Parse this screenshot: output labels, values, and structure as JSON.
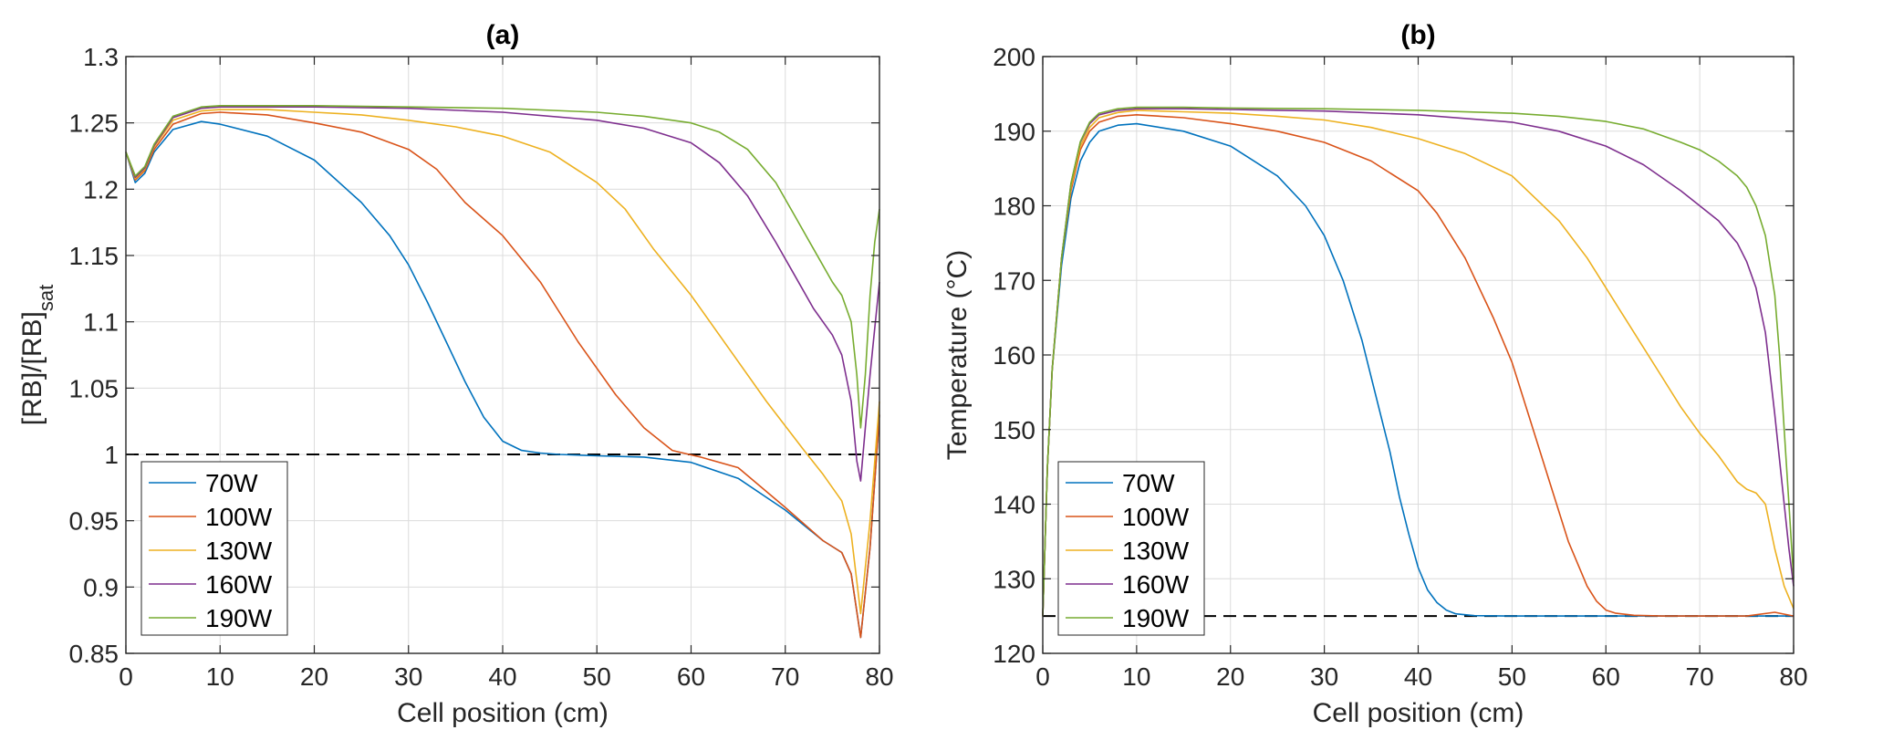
{
  "chart_data": [
    {
      "type": "line",
      "title": "(a)",
      "xlabel": "Cell position (cm)",
      "ylabel_main": "[RB]/[RB]",
      "ylabel_sub": "sat",
      "xlim": [
        0,
        80
      ],
      "ylim": [
        0.85,
        1.3
      ],
      "xticks": [
        0,
        10,
        20,
        30,
        40,
        50,
        60,
        70,
        80
      ],
      "xtick_labels": [
        "0",
        "10",
        "20",
        "30",
        "40",
        "50",
        "60",
        "70",
        "80"
      ],
      "yticks": [
        0.85,
        0.9,
        0.95,
        1,
        1.05,
        1.1,
        1.15,
        1.2,
        1.25,
        1.3
      ],
      "ytick_labels": [
        "0.85",
        "0.9",
        "0.95",
        "1",
        "1.05",
        "1.1",
        "1.15",
        "1.2",
        "1.25",
        "1.3"
      ],
      "grid": true,
      "legend_position": "bottom-left",
      "reference_line": {
        "y": 1.0,
        "style": "dashed",
        "color": "#000000"
      },
      "series": [
        {
          "name": "70W",
          "color": "#0072BD",
          "x": [
            0,
            1,
            2,
            3,
            5,
            8,
            10,
            15,
            20,
            25,
            28,
            30,
            32,
            34,
            36,
            38,
            40,
            42,
            44,
            46,
            50,
            55,
            60,
            65,
            70,
            74,
            76,
            77,
            78,
            79,
            80
          ],
          "y": [
            1.228,
            1.205,
            1.212,
            1.228,
            1.245,
            1.251,
            1.249,
            1.24,
            1.222,
            1.19,
            1.165,
            1.143,
            1.115,
            1.085,
            1.055,
            1.028,
            1.01,
            1.003,
            1.001,
            1.0,
            0.999,
            0.998,
            0.994,
            0.982,
            0.958,
            0.935,
            0.926,
            0.91,
            0.862,
            0.93,
            1.03
          ]
        },
        {
          "name": "100W",
          "color": "#D95319",
          "x": [
            0,
            1,
            2,
            3,
            5,
            8,
            10,
            15,
            20,
            25,
            30,
            33,
            36,
            40,
            44,
            48,
            52,
            55,
            58,
            61,
            65,
            70,
            74,
            76,
            77,
            78,
            79,
            80
          ],
          "y": [
            1.228,
            1.207,
            1.214,
            1.23,
            1.249,
            1.257,
            1.258,
            1.256,
            1.25,
            1.243,
            1.23,
            1.215,
            1.19,
            1.165,
            1.13,
            1.085,
            1.045,
            1.02,
            1.003,
            0.998,
            0.99,
            0.96,
            0.935,
            0.926,
            0.91,
            0.862,
            0.93,
            1.03
          ]
        },
        {
          "name": "130W",
          "color": "#EDB120",
          "x": [
            0,
            1,
            2,
            3,
            5,
            8,
            10,
            15,
            20,
            25,
            30,
            35,
            40,
            45,
            50,
            53,
            56,
            60,
            64,
            68,
            72,
            74,
            76,
            77,
            78,
            79,
            80
          ],
          "y": [
            1.228,
            1.208,
            1.215,
            1.232,
            1.252,
            1.259,
            1.26,
            1.26,
            1.258,
            1.256,
            1.252,
            1.247,
            1.24,
            1.228,
            1.205,
            1.185,
            1.155,
            1.12,
            1.08,
            1.04,
            1.003,
            0.985,
            0.965,
            0.94,
            0.88,
            0.95,
            1.04
          ]
        },
        {
          "name": "160W",
          "color": "#7E2F8E",
          "x": [
            0,
            1,
            2,
            3,
            5,
            8,
            10,
            15,
            20,
            30,
            40,
            50,
            55,
            60,
            63,
            66,
            69,
            71,
            73,
            75,
            76,
            77,
            77.6,
            78,
            78.5,
            79,
            79.5,
            80
          ],
          "y": [
            1.228,
            1.209,
            1.216,
            1.233,
            1.254,
            1.261,
            1.262,
            1.262,
            1.262,
            1.261,
            1.258,
            1.252,
            1.246,
            1.235,
            1.22,
            1.195,
            1.16,
            1.135,
            1.11,
            1.09,
            1.075,
            1.04,
            0.995,
            0.98,
            1.02,
            1.06,
            1.095,
            1.13
          ]
        },
        {
          "name": "190W",
          "color": "#77AC30",
          "x": [
            0,
            1,
            2,
            3,
            5,
            8,
            10,
            15,
            20,
            30,
            40,
            50,
            55,
            60,
            63,
            66,
            69,
            71,
            73,
            75,
            76,
            77,
            77.6,
            78,
            78.5,
            79,
            79.5,
            80
          ],
          "y": [
            1.228,
            1.21,
            1.217,
            1.234,
            1.255,
            1.262,
            1.263,
            1.263,
            1.263,
            1.262,
            1.261,
            1.258,
            1.255,
            1.25,
            1.243,
            1.23,
            1.205,
            1.18,
            1.155,
            1.13,
            1.12,
            1.1,
            1.06,
            1.02,
            1.06,
            1.12,
            1.16,
            1.185
          ]
        }
      ]
    },
    {
      "type": "line",
      "title": "(b)",
      "xlabel": "Cell position (cm)",
      "ylabel_main": "Temperature (°C)",
      "ylabel_sub": "",
      "xlim": [
        0,
        80
      ],
      "ylim": [
        120,
        200
      ],
      "xticks": [
        0,
        10,
        20,
        30,
        40,
        50,
        60,
        70,
        80
      ],
      "xtick_labels": [
        "0",
        "10",
        "20",
        "30",
        "40",
        "50",
        "60",
        "70",
        "80"
      ],
      "yticks": [
        120,
        130,
        140,
        150,
        160,
        170,
        180,
        190,
        200
      ],
      "ytick_labels": [
        "120",
        "130",
        "140",
        "150",
        "160",
        "170",
        "180",
        "190",
        "200"
      ],
      "grid": true,
      "legend_position": "bottom-left",
      "reference_line": {
        "y": 125,
        "style": "dashed",
        "color": "#000000"
      },
      "series": [
        {
          "name": "70W",
          "color": "#0072BD",
          "x": [
            0,
            0.5,
            1,
            2,
            3,
            4,
            5,
            6,
            8,
            10,
            15,
            20,
            25,
            28,
            30,
            32,
            34,
            36,
            37,
            38,
            39,
            40,
            41,
            42,
            43,
            44,
            46,
            50,
            55,
            60,
            70,
            80
          ],
          "y": [
            125,
            145,
            158,
            172,
            181,
            186,
            188.5,
            190,
            190.8,
            191,
            190,
            188,
            184,
            180,
            176,
            170,
            162,
            152,
            147,
            141,
            136,
            131.5,
            128.5,
            126.8,
            125.8,
            125.3,
            125.05,
            125,
            125,
            125,
            125,
            125
          ]
        },
        {
          "name": "100W",
          "color": "#D95319",
          "x": [
            0,
            0.5,
            1,
            2,
            3,
            4,
            5,
            6,
            8,
            10,
            15,
            20,
            25,
            30,
            35,
            40,
            42,
            45,
            48,
            50,
            52,
            54,
            56,
            58,
            59,
            60,
            61,
            63,
            66,
            70,
            75,
            78,
            80
          ],
          "y": [
            125,
            145,
            158,
            173,
            182,
            187.5,
            190,
            191.2,
            192,
            192.2,
            191.8,
            191,
            190,
            188.5,
            186,
            182,
            179,
            173,
            165,
            159,
            151,
            143,
            135,
            129,
            127,
            125.8,
            125.4,
            125.1,
            125,
            125,
            125,
            125.5,
            125
          ]
        },
        {
          "name": "130W",
          "color": "#EDB120",
          "x": [
            0,
            0.5,
            1,
            2,
            3,
            4,
            5,
            6,
            8,
            10,
            15,
            20,
            25,
            30,
            35,
            40,
            45,
            50,
            55,
            58,
            60,
            62,
            64,
            66,
            68,
            70,
            72,
            74,
            75,
            76,
            77,
            78,
            79,
            80
          ],
          "y": [
            125,
            145,
            158,
            173,
            182.5,
            188,
            190.5,
            191.8,
            192.5,
            192.8,
            192.6,
            192.4,
            192,
            191.5,
            190.5,
            189,
            187,
            184,
            178,
            173,
            169,
            165,
            161,
            157,
            153,
            149.5,
            146.5,
            143,
            142,
            141.5,
            140,
            134,
            129,
            126
          ]
        },
        {
          "name": "160W",
          "color": "#7E2F8E",
          "x": [
            0,
            0.5,
            1,
            2,
            3,
            4,
            5,
            6,
            8,
            10,
            15,
            20,
            30,
            40,
            50,
            55,
            60,
            64,
            68,
            70,
            72,
            74,
            75,
            76,
            77,
            78,
            79,
            79.5,
            80
          ],
          "y": [
            125,
            145,
            158,
            173,
            183,
            188.5,
            191,
            192.2,
            192.8,
            193,
            193,
            192.9,
            192.7,
            192.2,
            191.2,
            190,
            188,
            185.5,
            182,
            180,
            178,
            175,
            172.5,
            169,
            163,
            152,
            140,
            134,
            129
          ]
        },
        {
          "name": "190W",
          "color": "#77AC30",
          "x": [
            0,
            0.5,
            1,
            2,
            3,
            4,
            5,
            6,
            8,
            10,
            15,
            20,
            30,
            40,
            50,
            55,
            60,
            64,
            68,
            70,
            72,
            74,
            75,
            76,
            77,
            78,
            78.5,
            79,
            79.5,
            80
          ],
          "y": [
            125,
            145,
            158,
            173,
            183,
            188.6,
            191.2,
            192.4,
            193,
            193.2,
            193.2,
            193.1,
            193,
            192.8,
            192.4,
            192,
            191.3,
            190.3,
            188.5,
            187.5,
            186,
            184,
            182.5,
            180,
            176,
            168,
            160,
            150,
            140,
            130
          ]
        }
      ]
    }
  ]
}
